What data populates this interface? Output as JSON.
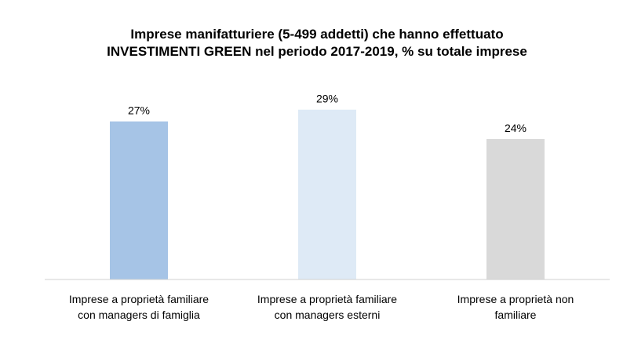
{
  "chart_data": {
    "type": "bar",
    "title": "Imprese manifatturiere (5-499 addetti) che hanno effettuato INVESTIMENTI GREEN nel periodo 2017-2019, % su totale imprese",
    "title_lines": [
      "Imprese manifatturiere (5-499 addetti) che hanno effettuato",
      "INVESTIMENTI GREEN nel periodo 2017-2019, % su totale imprese"
    ],
    "categories": [
      [
        "Imprese a proprietà familiare",
        "con managers di famiglia"
      ],
      [
        "Imprese a proprietà familiare",
        "con managers esterni"
      ],
      [
        "Imprese a proprietà non",
        "familiare"
      ]
    ],
    "values": [
      27,
      29,
      24
    ],
    "value_labels": [
      "27%",
      "29%",
      "24%"
    ],
    "colors": [
      "#a6c4e6",
      "#deeaf6",
      "#d9d9d9"
    ],
    "axis_color": "#d0d0d0",
    "ylim": [
      0,
      35
    ],
    "xlabel": "",
    "ylabel": "",
    "grid": false,
    "legend": "none"
  }
}
